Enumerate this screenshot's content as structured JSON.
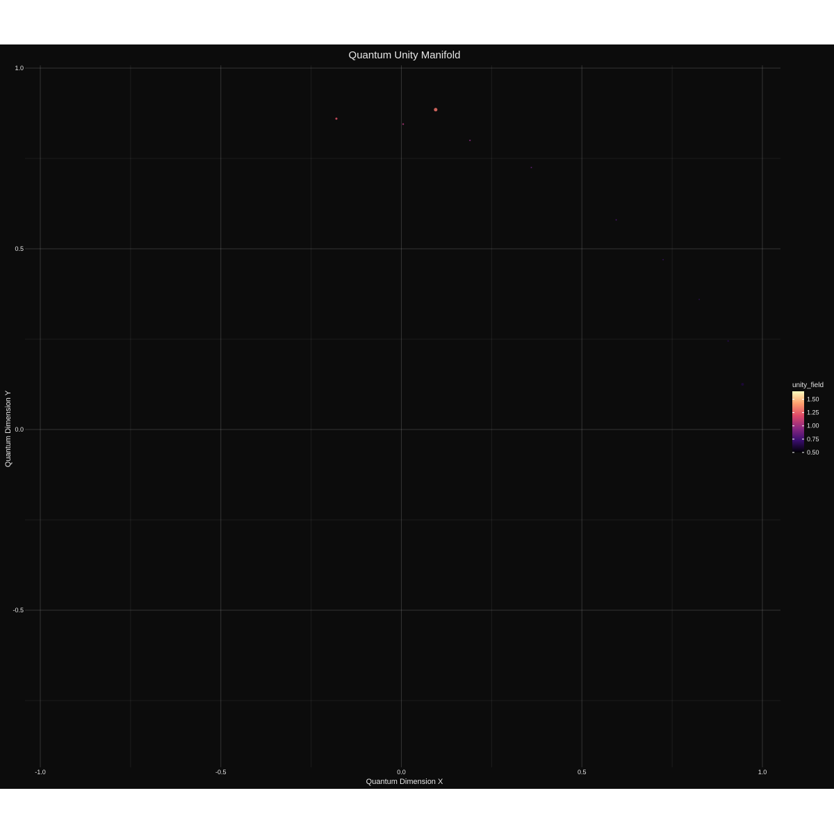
{
  "chart_data": {
    "type": "scatter",
    "title": "Quantum Unity Manifold",
    "xlabel": "Quantum Dimension X",
    "ylabel": "Quantum Dimension Y",
    "xlim": [
      -1.0,
      1.0
    ],
    "ylim": [
      -0.9,
      1.0
    ],
    "x_ticks": [
      -1.0,
      -0.5,
      0.0,
      0.5,
      1.0
    ],
    "x_tick_labels": [
      "-1.0",
      "-0.5",
      "0.0",
      "0.5",
      "1.0"
    ],
    "y_ticks": [
      1.0,
      0.5,
      0.0,
      -0.5
    ],
    "y_tick_labels": [
      "1.0",
      "0.5",
      "0.0",
      "-0.5"
    ],
    "grid": true,
    "color_scale": "magma",
    "legend": {
      "title": "unity_field",
      "placement": "right",
      "range": [
        0.5,
        1.65
      ],
      "ticks": [
        1.5,
        1.25,
        1.0,
        0.75,
        0.5
      ],
      "tick_labels": [
        "1.50",
        "1.25",
        "1.00",
        "0.75",
        "0.50"
      ]
    },
    "points": [
      {
        "x": -0.18,
        "y": 0.86,
        "unity_field": 1.22,
        "size": 1.5
      },
      {
        "x": 0.005,
        "y": 0.845,
        "unity_field": 1.05,
        "size": 1.2
      },
      {
        "x": 0.095,
        "y": 0.885,
        "unity_field": 1.3,
        "size": 2.5
      },
      {
        "x": 0.19,
        "y": 0.8,
        "unity_field": 0.95,
        "size": 1.1
      },
      {
        "x": 0.36,
        "y": 0.725,
        "unity_field": 0.85,
        "size": 1.0
      },
      {
        "x": 0.595,
        "y": 0.58,
        "unity_field": 0.8,
        "size": 1.0
      },
      {
        "x": 0.725,
        "y": 0.47,
        "unity_field": 0.75,
        "size": 0.9
      },
      {
        "x": 0.825,
        "y": 0.36,
        "unity_field": 0.7,
        "size": 0.9
      },
      {
        "x": 0.905,
        "y": 0.245,
        "unity_field": 0.66,
        "size": 1.1
      },
      {
        "x": 0.945,
        "y": 0.125,
        "unity_field": 0.62,
        "size": 2.0
      }
    ]
  }
}
